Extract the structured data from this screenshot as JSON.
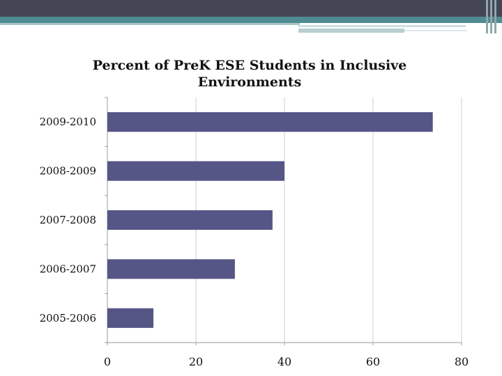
{
  "chart_data": {
    "type": "bar",
    "orientation": "horizontal",
    "title": [
      "Percent of PreK ESE Students in Inclusive",
      "Environments"
    ],
    "categories": [
      "2009-2010",
      "2008-2009",
      "2007-2008",
      "2006-2007",
      "2005-2006"
    ],
    "values": [
      73.5,
      40,
      37.3,
      28.8,
      10.4
    ],
    "xlim": [
      0,
      80
    ],
    "xticks": [
      0,
      20,
      40,
      60,
      80
    ],
    "xlabel": "",
    "ylabel": "",
    "grid": true,
    "bar_color": "#555586"
  }
}
